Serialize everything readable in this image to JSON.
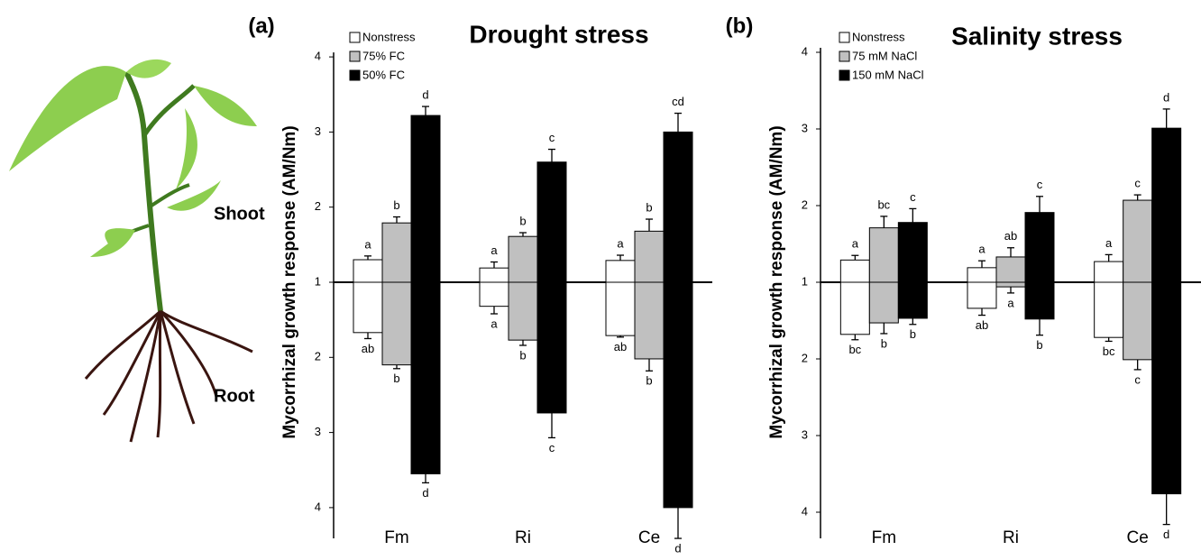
{
  "illustration": {
    "labels": [
      "Shoot",
      "Root"
    ]
  },
  "chart_data": [
    {
      "type": "bar",
      "panel_label": "(a)",
      "title": "Drought stress",
      "ylabel": "Mycorrhizal growth response (AM/Nm)",
      "categories": [
        "Fm",
        "Ri",
        "Ce"
      ],
      "shoot": {
        "ylim": [
          1,
          4
        ],
        "yticks": [
          1,
          2,
          3,
          4
        ]
      },
      "root": {
        "ylim": [
          1,
          4
        ],
        "yticks": [
          2,
          3,
          4
        ]
      },
      "series": [
        {
          "name": "Nonstress",
          "color": "#ffffff",
          "shoot_values": [
            1.3,
            1.19,
            1.29
          ],
          "shoot_errors": [
            0.05,
            0.08,
            0.07
          ],
          "shoot_letters": [
            "a",
            "a",
            "a"
          ],
          "root_values": [
            1.67,
            1.32,
            1.71
          ],
          "root_errors": [
            0.08,
            0.1,
            0.02
          ],
          "root_letters": [
            "ab",
            "a",
            "ab"
          ]
        },
        {
          "name": "75% FC",
          "color": "#c0c0c0",
          "shoot_values": [
            1.79,
            1.61,
            1.68
          ],
          "shoot_errors": [
            0.08,
            0.05,
            0.16
          ],
          "shoot_letters": [
            "b",
            "b",
            "b"
          ],
          "root_values": [
            2.1,
            1.77,
            2.02
          ],
          "root_errors": [
            0.05,
            0.07,
            0.16
          ],
          "root_letters": [
            "b",
            "b",
            "b"
          ]
        },
        {
          "name": "50% FC",
          "color": "#000000",
          "shoot_values": [
            3.22,
            2.6,
            3.0
          ],
          "shoot_errors": [
            0.12,
            0.17,
            0.25
          ],
          "shoot_letters": [
            "d",
            "c",
            "cd"
          ],
          "root_values": [
            3.55,
            2.74,
            4.0
          ],
          "root_errors": [
            0.12,
            0.33,
            0.41
          ],
          "root_letters": [
            "d",
            "c",
            "d"
          ]
        }
      ]
    },
    {
      "type": "bar",
      "panel_label": "(b)",
      "title": "Salinity stress",
      "ylabel": "Mycorrhizal growth response (AM/Nm)",
      "categories": [
        "Fm",
        "Ri",
        "Ce"
      ],
      "shoot": {
        "ylim": [
          1,
          4
        ],
        "yticks": [
          1,
          2,
          3,
          4
        ]
      },
      "root": {
        "ylim": [
          1,
          4
        ],
        "yticks": [
          2,
          3,
          4
        ]
      },
      "series": [
        {
          "name": "Nonstress",
          "color": "#ffffff",
          "shoot_values": [
            1.29,
            1.19,
            1.27
          ],
          "shoot_errors": [
            0.06,
            0.09,
            0.09
          ],
          "shoot_letters": [
            "a",
            "a",
            "a"
          ],
          "root_values": [
            1.68,
            1.34,
            1.72
          ],
          "root_errors": [
            0.07,
            0.09,
            0.05
          ],
          "root_letters": [
            "bc",
            "ab",
            "bc"
          ]
        },
        {
          "name": "75 mM NaCl",
          "color": "#c0c0c0",
          "shoot_values": [
            1.71,
            1.33,
            2.07
          ],
          "shoot_errors": [
            0.15,
            0.12,
            0.07
          ],
          "shoot_letters": [
            "bc",
            "ab",
            "c"
          ],
          "root_values": [
            1.53,
            1.06,
            2.01
          ],
          "root_errors": [
            0.14,
            0.08,
            0.13
          ],
          "root_letters": [
            "b",
            "a",
            "c"
          ]
        },
        {
          "name": "150 mM NaCl",
          "color": "#000000",
          "shoot_values": [
            1.78,
            1.91,
            3.01
          ],
          "shoot_errors": [
            0.18,
            0.21,
            0.25
          ],
          "shoot_letters": [
            "c",
            "c",
            "d"
          ],
          "root_values": [
            1.47,
            1.48,
            3.76
          ],
          "root_errors": [
            0.08,
            0.21,
            0.4
          ],
          "root_letters": [
            "b",
            "b",
            "d"
          ]
        }
      ]
    }
  ]
}
